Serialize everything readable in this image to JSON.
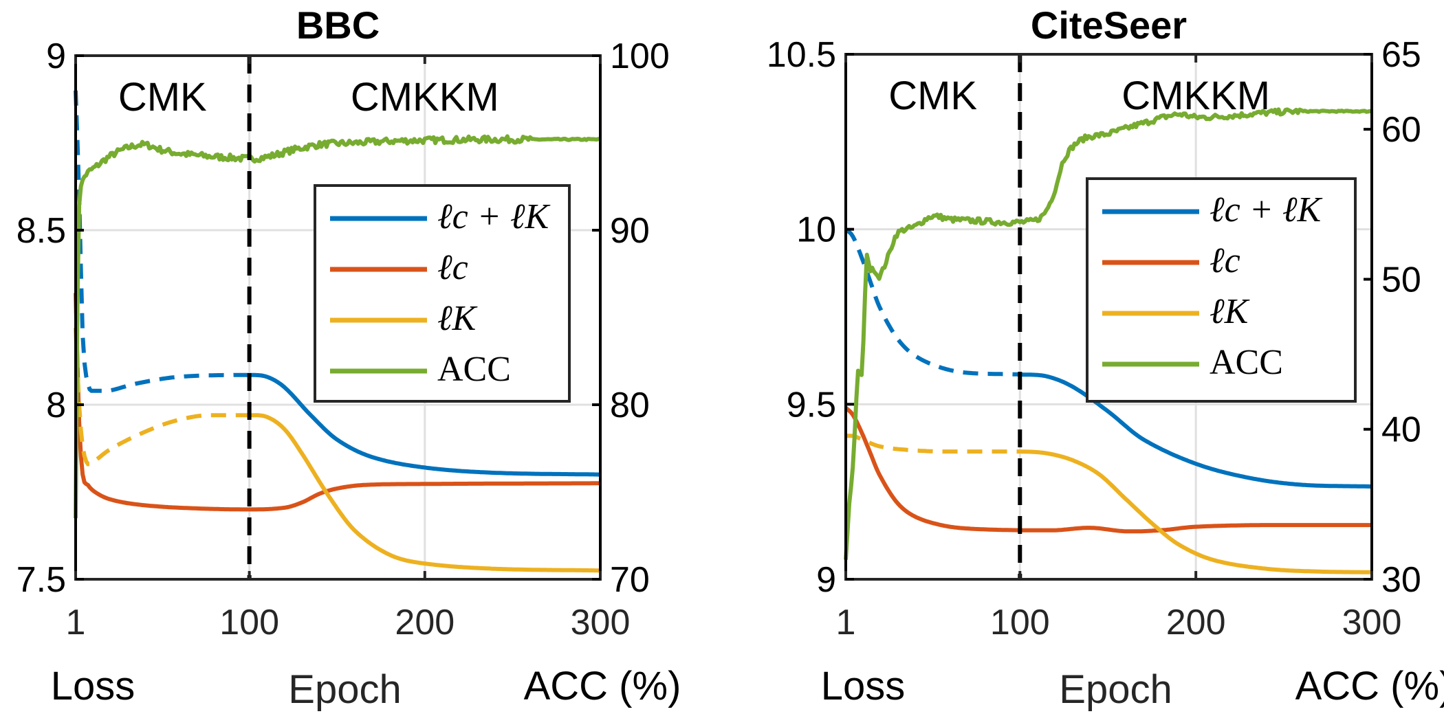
{
  "chart_data": [
    {
      "type": "line",
      "title": "BBC",
      "xlabel": "Epoch",
      "ylabel_left": "Loss",
      "ylabel_right": "ACC (%)",
      "xlim": [
        1,
        300
      ],
      "ylim_left": [
        7.5,
        9
      ],
      "ylim_right": [
        70,
        100
      ],
      "xticks": [
        "1",
        "100",
        "200",
        "300"
      ],
      "xtick_values": [
        1,
        100,
        200,
        300
      ],
      "yticks_left": [
        "7.5",
        "8",
        "8.5",
        "9"
      ],
      "ytick_left_values": [
        7.5,
        8,
        8.5,
        9
      ],
      "yticks_right": [
        "70",
        "80",
        "90",
        "100"
      ],
      "ytick_right_values": [
        70,
        80,
        90,
        100
      ],
      "grid": true,
      "phase_boundary_epoch": 100,
      "phase_labels": [
        "CMK",
        "CMKKM"
      ],
      "legend_position": "center-right",
      "series": [
        {
          "name": "lc+lK",
          "axis": "left",
          "color": "#0072BD",
          "dashed_until": 100,
          "x": [
            1,
            3,
            5,
            8,
            12,
            20,
            35,
            60,
            100,
            110,
            120,
            135,
            150,
            170,
            200,
            240,
            300
          ],
          "y": [
            8.9,
            8.6,
            8.2,
            8.06,
            8.04,
            8.04,
            8.06,
            8.08,
            8.085,
            8.08,
            8.05,
            7.97,
            7.9,
            7.85,
            7.82,
            7.805,
            7.8
          ]
        },
        {
          "name": "lc",
          "axis": "left",
          "color": "#D95319",
          "dashed_until": null,
          "x": [
            1,
            3,
            5,
            8,
            12,
            20,
            35,
            60,
            100,
            120,
            130,
            140,
            150,
            165,
            200,
            300
          ],
          "y": [
            8.32,
            7.95,
            7.8,
            7.77,
            7.75,
            7.73,
            7.715,
            7.705,
            7.7,
            7.705,
            7.72,
            7.745,
            7.76,
            7.77,
            7.773,
            7.775
          ]
        },
        {
          "name": "lK",
          "axis": "left",
          "color": "#EDB120",
          "dashed_until": 100,
          "x": [
            1,
            3,
            5,
            8,
            12,
            20,
            35,
            55,
            75,
            100,
            110,
            120,
            130,
            145,
            160,
            180,
            200,
            240,
            300
          ],
          "y": [
            8.22,
            8.0,
            7.88,
            7.83,
            7.84,
            7.87,
            7.91,
            7.95,
            7.97,
            7.97,
            7.965,
            7.93,
            7.86,
            7.74,
            7.64,
            7.57,
            7.545,
            7.53,
            7.525
          ]
        },
        {
          "name": "ACC",
          "axis": "right",
          "color": "#77AC30",
          "dashed_until": null,
          "x": [
            1,
            2,
            3,
            5,
            8,
            12,
            20,
            30,
            40,
            50,
            60,
            75,
            90,
            100,
            110,
            125,
            140,
            160,
            180,
            200,
            240,
            300
          ],
          "y": [
            73.5,
            86,
            91.5,
            92.8,
            93.3,
            93.6,
            94.2,
            94.7,
            94.9,
            94.6,
            94.4,
            94.25,
            94.15,
            94.1,
            94.2,
            94.6,
            94.9,
            95.0,
            95.1,
            95.15,
            95.2,
            95.2
          ]
        }
      ]
    },
    {
      "type": "line",
      "title": "CiteSeer",
      "xlabel": "Epoch",
      "ylabel_left": "Loss",
      "ylabel_right": "ACC (%)",
      "xlim": [
        1,
        300
      ],
      "ylim_left": [
        9,
        10.5
      ],
      "ylim_right": [
        30,
        65
      ],
      "xticks": [
        "1",
        "100",
        "200",
        "300"
      ],
      "xtick_values": [
        1,
        100,
        200,
        300
      ],
      "yticks_left": [
        "9",
        "9.5",
        "10",
        "10.5"
      ],
      "ytick_left_values": [
        9,
        9.5,
        10,
        10.5
      ],
      "yticks_right": [
        "30",
        "40",
        "50",
        "60",
        "65"
      ],
      "ytick_right_values": [
        30,
        40,
        50,
        60,
        65
      ],
      "grid": true,
      "phase_boundary_epoch": 100,
      "phase_labels": [
        "CMK",
        "CMKKM"
      ],
      "legend_position": "center-right",
      "series": [
        {
          "name": "lc+lK",
          "axis": "left",
          "color": "#0072BD",
          "dashed_until": 100,
          "x": [
            1,
            5,
            10,
            15,
            20,
            30,
            40,
            55,
            70,
            100,
            115,
            130,
            150,
            170,
            200,
            230,
            260,
            300
          ],
          "y": [
            10.0,
            9.98,
            9.92,
            9.85,
            9.78,
            9.69,
            9.64,
            9.605,
            9.59,
            9.585,
            9.58,
            9.55,
            9.48,
            9.4,
            9.33,
            9.29,
            9.27,
            9.265
          ]
        },
        {
          "name": "lc",
          "axis": "left",
          "color": "#D95319",
          "dashed_until": null,
          "x": [
            1,
            5,
            10,
            15,
            20,
            30,
            40,
            55,
            70,
            100,
            120,
            140,
            160,
            180,
            200,
            240,
            300
          ],
          "y": [
            9.49,
            9.47,
            9.42,
            9.36,
            9.3,
            9.22,
            9.18,
            9.155,
            9.145,
            9.14,
            9.14,
            9.147,
            9.137,
            9.14,
            9.15,
            9.155,
            9.155
          ]
        },
        {
          "name": "lK",
          "axis": "left",
          "color": "#EDB120",
          "dashed_until": 100,
          "x": [
            1,
            5,
            10,
            20,
            35,
            55,
            80,
            100,
            115,
            130,
            145,
            160,
            175,
            190,
            210,
            240,
            270,
            300
          ],
          "y": [
            9.41,
            9.41,
            9.4,
            9.38,
            9.37,
            9.365,
            9.365,
            9.365,
            9.36,
            9.34,
            9.3,
            9.23,
            9.16,
            9.1,
            9.055,
            9.03,
            9.022,
            9.02
          ]
        },
        {
          "name": "ACC",
          "axis": "right",
          "color": "#77AC30",
          "dashed_until": null,
          "x": [
            1,
            3,
            5,
            7,
            8,
            10,
            12,
            13,
            15,
            17,
            20,
            25,
            30,
            40,
            50,
            60,
            75,
            90,
            100,
            110,
            115,
            120,
            125,
            135,
            150,
            170,
            190,
            200,
            220,
            240,
            260,
            300
          ],
          "y": [
            31.3,
            35,
            37.5,
            42,
            44,
            43.5,
            49,
            51.5,
            50.6,
            50.7,
            50.2,
            51.5,
            53,
            53.5,
            54.2,
            54.0,
            53.9,
            53.8,
            53.8,
            54.0,
            54.6,
            56,
            58,
            59.3,
            59.7,
            60.4,
            61.0,
            60.8,
            60.9,
            61.1,
            61.2,
            61.2
          ]
        }
      ]
    }
  ],
  "legend_labels": [
    "ℓc + ℓK",
    "ℓc",
    "ℓK",
    "ACC"
  ]
}
